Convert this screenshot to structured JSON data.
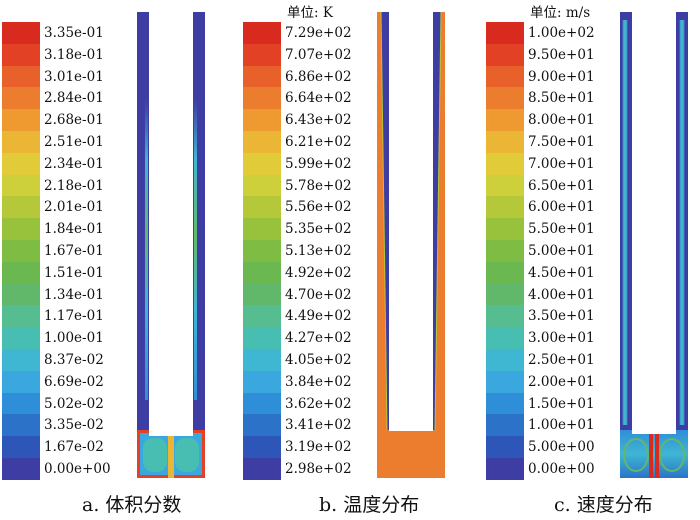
{
  "colorbar_colors": [
    "#3d3da3",
    "#2e55b8",
    "#2c72c9",
    "#2f8ed8",
    "#3aa7de",
    "#3fb6d2",
    "#48bdb2",
    "#55bd8f",
    "#62b86a",
    "#6bb750",
    "#7fbc44",
    "#98c23c",
    "#b4c83a",
    "#cdd03a",
    "#e1cb38",
    "#ebb535",
    "#ee9a31",
    "#ec7c2e",
    "#e8602a",
    "#e24126",
    "#d92a20"
  ],
  "panels": [
    {
      "id": "a",
      "caption": "a. 体积分数",
      "unit": "",
      "ticks": [
        "3.35e-01",
        "3.18e-01",
        "3.01e-01",
        "2.84e-01",
        "2.68e-01",
        "2.51e-01",
        "2.34e-01",
        "2.18e-01",
        "2.01e-01",
        "1.84e-01",
        "1.67e-01",
        "1.51e-01",
        "1.34e-01",
        "1.17e-01",
        "1.00e-01",
        "8.37e-02",
        "6.69e-02",
        "5.02e-02",
        "3.35e-02",
        "1.67e-02",
        "0.00e+00"
      ]
    },
    {
      "id": "b",
      "caption": "b. 温度分布",
      "unit": "单位: K",
      "ticks": [
        "7.29e+02",
        "7.07e+02",
        "6.86e+02",
        "6.64e+02",
        "6.43e+02",
        "6.21e+02",
        "5.99e+02",
        "5.78e+02",
        "5.56e+02",
        "5.35e+02",
        "5.13e+02",
        "4.92e+02",
        "4.70e+02",
        "4.49e+02",
        "4.27e+02",
        "4.05e+02",
        "3.84e+02",
        "3.62e+02",
        "3.41e+02",
        "3.19e+02",
        "2.98e+02"
      ]
    },
    {
      "id": "c",
      "caption": "c. 速度分布",
      "unit": "单位: m/s",
      "ticks": [
        "1.00e+02",
        "9.50e+01",
        "9.00e+01",
        "8.50e+01",
        "8.00e+01",
        "7.50e+01",
        "7.00e+01",
        "6.50e+01",
        "6.00e+01",
        "5.50e+01",
        "5.00e+01",
        "4.50e+01",
        "4.00e+01",
        "3.50e+01",
        "3.00e+01",
        "2.50e+01",
        "2.00e+01",
        "1.50e+01",
        "1.00e+01",
        "5.00e+00",
        "0.00e+00"
      ]
    }
  ]
}
